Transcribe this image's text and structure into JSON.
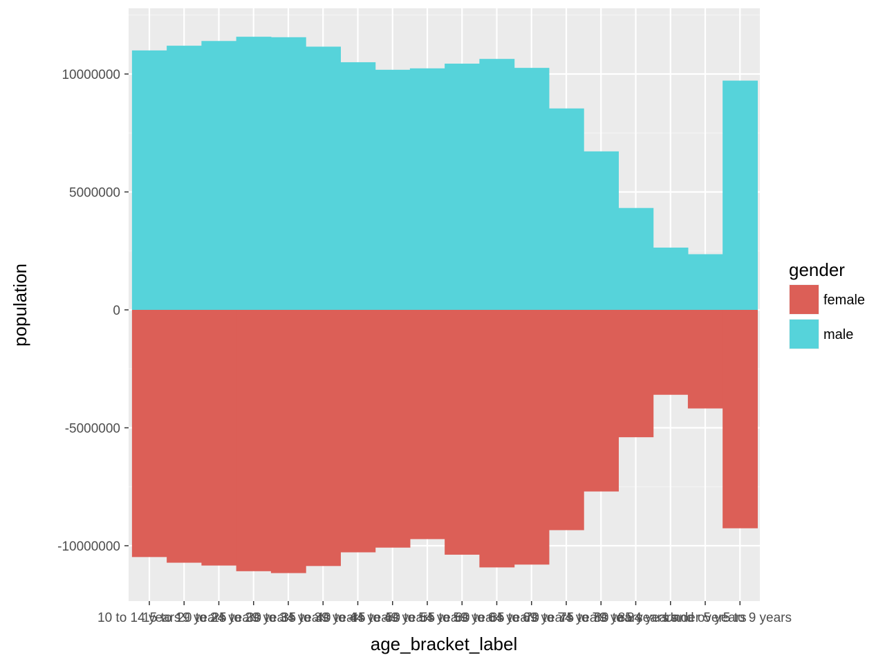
{
  "chart_data": {
    "type": "bar",
    "xlabel": "age_bracket_label",
    "ylabel": "population",
    "ylim": [
      -12200000,
      12700000
    ],
    "yticks": [
      -10000000,
      -5000000,
      0,
      5000000,
      10000000
    ],
    "ytick_labels": [
      "-10000000",
      "-5000000",
      "0",
      "5000000",
      "10000000"
    ],
    "categories": [
      "10 to 14 years",
      "15 to 19 years",
      "20 to 24 years",
      "25 to 29 years",
      "30 to 34 years",
      "35 to 39 years",
      "40 to 44 years",
      "45 to 49 years",
      "50 to 54 years",
      "55 to 59 years",
      "60 to 64 years",
      "65 to 69 years",
      "70 to 74 years",
      "75 to 79 years",
      "80 to 84 years",
      "85 years and over",
      "Under 5 years",
      "5 to 9 years"
    ],
    "series": [
      {
        "name": "female",
        "color": "#DC5F57",
        "values": [
          -10480000,
          -10720000,
          -10840000,
          -11080000,
          -11160000,
          -10860000,
          -10280000,
          -10080000,
          -9720000,
          -10380000,
          -10920000,
          -10800000,
          -9340000,
          -7700000,
          -5400000,
          -3600000,
          -4180000,
          -9260000
        ]
      },
      {
        "name": "male",
        "color": "#56D3DA",
        "values": [
          11000000,
          11200000,
          11400000,
          11580000,
          11560000,
          11160000,
          10500000,
          10180000,
          10240000,
          10440000,
          10640000,
          10260000,
          8540000,
          6720000,
          4320000,
          2640000,
          2360000,
          9720000
        ]
      }
    ],
    "legend": {
      "title": "gender",
      "placement": "right"
    },
    "grid": true
  }
}
